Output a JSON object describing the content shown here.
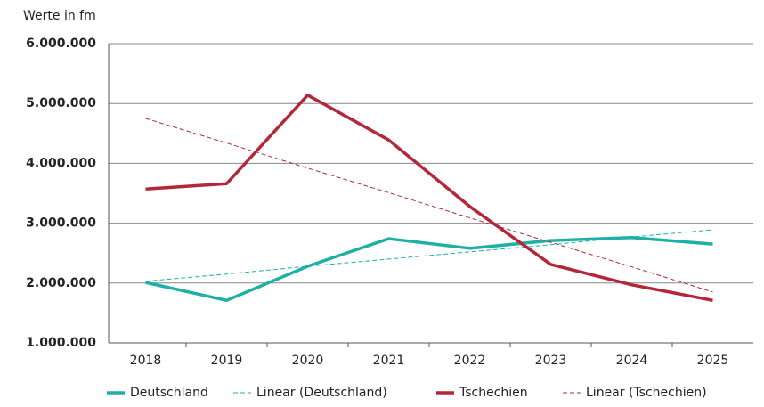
{
  "chart_data": {
    "type": "line",
    "y_label": "Werte in fm",
    "categories": [
      "2018",
      "2019",
      "2020",
      "2021",
      "2022",
      "2023",
      "2024",
      "2025"
    ],
    "series": [
      {
        "name": "Deutschland",
        "color": "#1fb0a5",
        "dash": false,
        "values": [
          2010000,
          1710000,
          2280000,
          2740000,
          2580000,
          2710000,
          2760000,
          2650000
        ]
      },
      {
        "name": "Linear (Deutschland)",
        "color": "#1fb0a5",
        "dash": true,
        "values": [
          2030000,
          2150000,
          2280000,
          2400000,
          2520000,
          2640000,
          2770000,
          2890000
        ]
      },
      {
        "name": "Tschechien",
        "color": "#b3273b",
        "dash": false,
        "values": [
          3570000,
          3660000,
          5140000,
          4390000,
          3280000,
          2310000,
          1970000,
          1710000
        ]
      },
      {
        "name": "Linear (Tschechien)",
        "color": "#b3273b",
        "dash": true,
        "values": [
          4750000,
          4340000,
          3920000,
          3510000,
          3090000,
          2680000,
          2270000,
          1850000
        ]
      }
    ],
    "ylim": [
      1000000,
      6000000
    ],
    "yticks": [
      {
        "value": 1000000,
        "label": "1.000.000"
      },
      {
        "value": 2000000,
        "label": "2.000.000"
      },
      {
        "value": 3000000,
        "label": "3.000.000"
      },
      {
        "value": 4000000,
        "label": "4.000.000"
      },
      {
        "value": 5000000,
        "label": "5.000.000"
      },
      {
        "value": 6000000,
        "label": "6.000.000"
      }
    ],
    "grid": true
  }
}
